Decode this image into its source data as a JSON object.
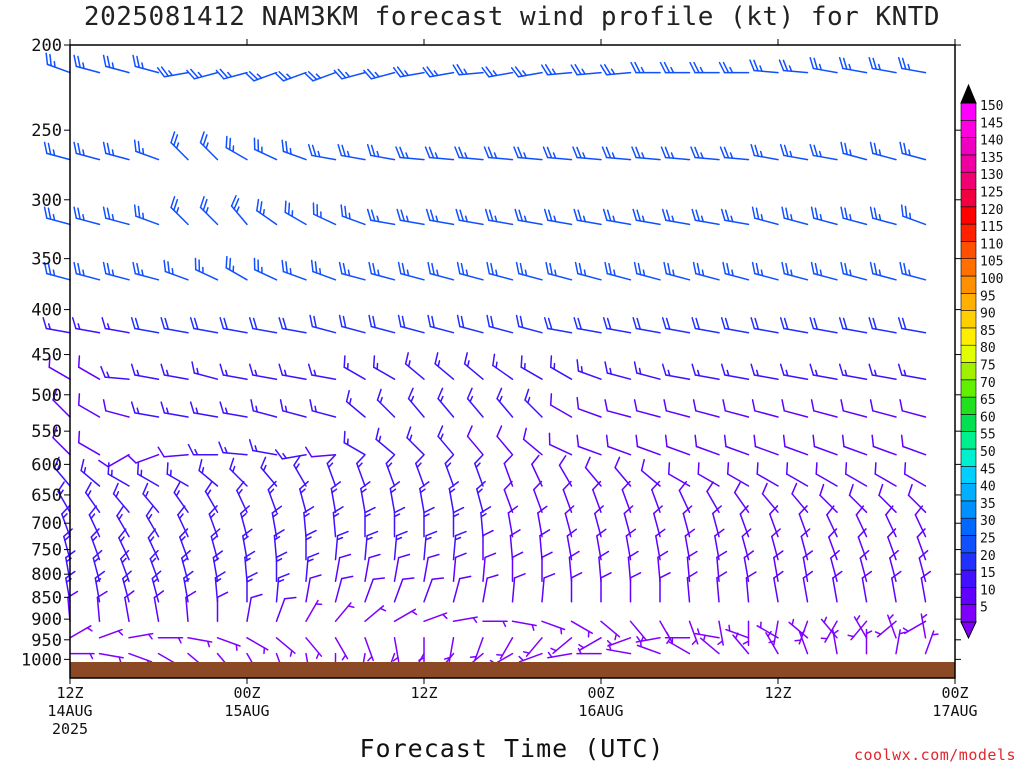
{
  "title": "2025081412 NAM3KM forecast wind profile (kt) for KNTD",
  "xlabel": "Forecast Time (UTC)",
  "source": "coolwx.com/models",
  "chart_data": {
    "type": "wind-barb",
    "title": "2025081412 NAM3KM forecast wind profile (kt) for KNTD",
    "xlabel": "Forecast Time (UTC)",
    "ylabel": "",
    "y_scale": "log-pressure (hPa), inverted",
    "ylim": [
      1050,
      200
    ],
    "yticks": [
      "200",
      "250",
      "300",
      "350",
      "400",
      "450",
      "500",
      "550",
      "600",
      "650",
      "700",
      "750",
      "800",
      "850",
      "900",
      "950",
      "1000"
    ],
    "x_hours_range": [
      0,
      60
    ],
    "xticks": [
      {
        "hour": 0,
        "lines": [
          "12Z",
          "14AUG",
          "2025"
        ]
      },
      {
        "hour": 12,
        "lines": [
          "00Z",
          "15AUG"
        ]
      },
      {
        "hour": 24,
        "lines": [
          "12Z"
        ]
      },
      {
        "hour": 36,
        "lines": [
          "00Z",
          "16AUG"
        ]
      },
      {
        "hour": 48,
        "lines": [
          "12Z"
        ]
      },
      {
        "hour": 60,
        "lines": [
          "00Z",
          "17AUG"
        ]
      }
    ],
    "surface_band_color": "#8b4a25",
    "colorbar": {
      "labels": [
        "5",
        "10",
        "15",
        "20",
        "25",
        "30",
        "35",
        "40",
        "45",
        "50",
        "55",
        "60",
        "65",
        "70",
        "75",
        "80",
        "85",
        "90",
        "95",
        "100",
        "105",
        "110",
        "115",
        "120",
        "125",
        "130",
        "135",
        "140",
        "145",
        "150"
      ],
      "colors": [
        "#8000ff",
        "#6000ff",
        "#4010ff",
        "#2030ff",
        "#1050ff",
        "#0068ff",
        "#0090ff",
        "#00b0ff",
        "#00d0ff",
        "#00f0d0",
        "#00f090",
        "#00e050",
        "#20e020",
        "#60f000",
        "#a0f000",
        "#e0ff00",
        "#ffee00",
        "#ffd000",
        "#ffb000",
        "#ff9000",
        "#ff7000",
        "#ff5000",
        "#ff2000",
        "#ff0000",
        "#f00040",
        "#f00070",
        "#f000a0",
        "#f000c0",
        "#ff00e0",
        "#ff00ff"
      ]
    },
    "levels_hpa": [
      215,
      270,
      320,
      370,
      425,
      480,
      530,
      585,
      635,
      680,
      725,
      770,
      815,
      860,
      905,
      945,
      985
    ],
    "series": [
      {
        "p": 215,
        "dir": [
          290,
          285,
          285,
          285,
          260,
          255,
          255,
          250,
          250,
          250,
          255,
          255,
          260,
          260,
          265,
          260,
          260,
          265,
          265,
          265,
          270,
          270,
          270,
          270,
          275,
          275,
          280,
          280,
          280,
          280,
          285
        ],
        "spd": [
          25,
          25,
          25,
          25,
          25,
          25,
          25,
          25,
          25,
          25,
          25,
          25,
          25,
          25,
          25,
          25,
          25,
          25,
          25,
          25,
          25,
          25,
          25,
          25,
          25,
          25,
          25,
          25,
          25,
          25,
          25
        ]
      },
      {
        "p": 270,
        "dir": [
          285,
          285,
          285,
          290,
          315,
          315,
          300,
          295,
          290,
          280,
          280,
          280,
          275,
          275,
          275,
          275,
          275,
          275,
          275,
          275,
          275,
          275,
          275,
          275,
          280,
          280,
          280,
          285,
          285,
          285,
          285
        ],
        "spd": [
          25,
          25,
          25,
          25,
          25,
          25,
          25,
          25,
          25,
          25,
          25,
          25,
          25,
          25,
          25,
          25,
          25,
          25,
          25,
          25,
          25,
          25,
          25,
          25,
          25,
          25,
          25,
          25,
          25,
          25,
          25
        ]
      },
      {
        "p": 320,
        "dir": [
          285,
          285,
          285,
          290,
          315,
          315,
          320,
          305,
          300,
          295,
          290,
          280,
          280,
          280,
          280,
          280,
          280,
          280,
          280,
          280,
          280,
          280,
          280,
          280,
          285,
          285,
          285,
          285,
          285,
          290,
          290
        ],
        "spd": [
          25,
          25,
          25,
          25,
          25,
          25,
          25,
          25,
          25,
          25,
          25,
          25,
          25,
          25,
          25,
          25,
          25,
          25,
          25,
          25,
          25,
          25,
          25,
          25,
          25,
          25,
          25,
          25,
          25,
          25,
          25
        ]
      },
      {
        "p": 370,
        "dir": [
          285,
          285,
          285,
          285,
          290,
          295,
          300,
          295,
          290,
          290,
          285,
          285,
          285,
          285,
          285,
          285,
          285,
          285,
          285,
          285,
          285,
          285,
          285,
          285,
          285,
          285,
          285,
          285,
          285,
          285,
          285
        ],
        "spd": [
          25,
          25,
          25,
          25,
          25,
          25,
          25,
          25,
          25,
          25,
          25,
          25,
          25,
          25,
          25,
          25,
          25,
          25,
          25,
          25,
          25,
          25,
          25,
          25,
          25,
          25,
          25,
          25,
          25,
          25,
          25
        ]
      },
      {
        "p": 425,
        "dir": [
          280,
          280,
          280,
          280,
          280,
          280,
          280,
          280,
          280,
          285,
          285,
          285,
          285,
          285,
          285,
          285,
          285,
          280,
          280,
          280,
          280,
          280,
          280,
          280,
          280,
          280,
          280,
          280,
          280,
          280,
          280
        ],
        "spd": [
          15,
          15,
          15,
          20,
          20,
          20,
          20,
          20,
          20,
          20,
          20,
          20,
          20,
          20,
          20,
          20,
          20,
          20,
          20,
          20,
          20,
          20,
          20,
          20,
          20,
          20,
          20,
          20,
          20,
          20,
          20
        ]
      },
      {
        "p": 480,
        "dir": [
          300,
          300,
          275,
          280,
          280,
          285,
          280,
          280,
          280,
          280,
          300,
          300,
          310,
          310,
          310,
          305,
          300,
          300,
          290,
          285,
          285,
          280,
          280,
          280,
          280,
          280,
          280,
          280,
          280,
          280,
          280
        ],
        "spd": [
          10,
          10,
          15,
          15,
          15,
          15,
          15,
          15,
          15,
          15,
          15,
          15,
          15,
          15,
          15,
          15,
          15,
          15,
          15,
          15,
          15,
          15,
          15,
          15,
          15,
          15,
          15,
          15,
          15,
          15,
          15
        ]
      },
      {
        "p": 530,
        "dir": [
          315,
          300,
          285,
          280,
          280,
          280,
          280,
          285,
          285,
          285,
          310,
          315,
          320,
          320,
          320,
          320,
          315,
          300,
          290,
          285,
          285,
          285,
          285,
          285,
          285,
          285,
          285,
          285,
          285,
          285,
          285
        ],
        "spd": [
          10,
          10,
          10,
          15,
          15,
          15,
          15,
          15,
          15,
          15,
          15,
          15,
          15,
          15,
          15,
          15,
          15,
          10,
          10,
          10,
          10,
          10,
          10,
          10,
          10,
          10,
          10,
          10,
          10,
          10,
          10
        ]
      },
      {
        "p": 585,
        "dir": [
          315,
          300,
          240,
          250,
          265,
          270,
          275,
          280,
          260,
          265,
          300,
          310,
          315,
          320,
          320,
          320,
          310,
          295,
          290,
          290,
          290,
          290,
          290,
          290,
          290,
          290,
          290,
          290,
          290,
          290,
          290
        ],
        "spd": [
          10,
          10,
          10,
          10,
          10,
          15,
          15,
          15,
          15,
          10,
          15,
          15,
          15,
          15,
          10,
          10,
          10,
          10,
          10,
          10,
          10,
          10,
          10,
          10,
          10,
          10,
          10,
          10,
          10,
          10,
          10
        ]
      },
      {
        "p": 635,
        "dir": [
          320,
          310,
          300,
          300,
          300,
          310,
          315,
          320,
          330,
          340,
          340,
          340,
          340,
          340,
          340,
          340,
          335,
          330,
          320,
          320,
          310,
          300,
          300,
          300,
          300,
          300,
          300,
          300,
          300,
          300,
          300
        ],
        "spd": [
          15,
          15,
          15,
          15,
          15,
          15,
          15,
          15,
          15,
          15,
          15,
          15,
          15,
          15,
          15,
          10,
          10,
          10,
          10,
          10,
          10,
          10,
          10,
          10,
          10,
          10,
          10,
          10,
          10,
          10,
          10
        ]
      },
      {
        "p": 680,
        "dir": [
          330,
          325,
          320,
          320,
          325,
          330,
          335,
          340,
          345,
          350,
          350,
          350,
          350,
          350,
          345,
          340,
          340,
          340,
          340,
          340,
          340,
          335,
          330,
          325,
          320,
          320,
          315,
          315,
          315,
          315,
          315
        ],
        "spd": [
          15,
          15,
          15,
          15,
          15,
          15,
          15,
          15,
          15,
          15,
          15,
          15,
          15,
          15,
          15,
          10,
          10,
          10,
          10,
          10,
          10,
          10,
          10,
          10,
          10,
          10,
          10,
          10,
          10,
          10,
          10
        ]
      },
      {
        "p": 725,
        "dir": [
          340,
          335,
          330,
          330,
          335,
          340,
          345,
          350,
          355,
          355,
          0,
          0,
          0,
          0,
          355,
          350,
          350,
          345,
          345,
          345,
          345,
          345,
          345,
          340,
          340,
          340,
          335,
          335,
          335,
          335,
          335
        ],
        "spd": [
          15,
          15,
          15,
          15,
          15,
          15,
          15,
          15,
          15,
          15,
          15,
          15,
          15,
          15,
          15,
          10,
          10,
          10,
          10,
          10,
          10,
          10,
          10,
          10,
          10,
          10,
          10,
          10,
          10,
          10,
          10
        ]
      },
      {
        "p": 770,
        "dir": [
          345,
          340,
          335,
          335,
          340,
          345,
          350,
          355,
          0,
          5,
          5,
          5,
          5,
          5,
          0,
          355,
          355,
          350,
          350,
          350,
          350,
          350,
          350,
          345,
          345,
          345,
          340,
          340,
          340,
          340,
          340
        ],
        "spd": [
          15,
          15,
          15,
          15,
          15,
          15,
          15,
          15,
          15,
          15,
          15,
          15,
          15,
          15,
          10,
          10,
          10,
          10,
          10,
          10,
          10,
          10,
          10,
          10,
          10,
          10,
          10,
          10,
          10,
          10,
          10
        ]
      },
      {
        "p": 815,
        "dir": [
          350,
          345,
          340,
          340,
          345,
          350,
          355,
          0,
          5,
          10,
          10,
          10,
          10,
          5,
          5,
          0,
          0,
          355,
          355,
          355,
          355,
          355,
          355,
          350,
          350,
          350,
          345,
          345,
          345,
          345,
          345
        ],
        "spd": [
          15,
          15,
          15,
          15,
          15,
          15,
          15,
          15,
          15,
          10,
          10,
          10,
          10,
          10,
          10,
          10,
          10,
          10,
          10,
          10,
          10,
          10,
          10,
          10,
          10,
          10,
          10,
          10,
          10,
          10,
          10
        ]
      },
      {
        "p": 860,
        "dir": [
          350,
          350,
          345,
          345,
          350,
          355,
          0,
          5,
          10,
          15,
          20,
          20,
          20,
          15,
          10,
          5,
          5,
          0,
          0,
          0,
          0,
          355,
          355,
          355,
          350,
          350,
          350,
          350,
          350,
          350,
          350
        ],
        "spd": [
          15,
          15,
          15,
          15,
          15,
          15,
          15,
          15,
          10,
          10,
          10,
          10,
          10,
          10,
          10,
          10,
          10,
          10,
          10,
          10,
          10,
          10,
          10,
          10,
          10,
          10,
          10,
          10,
          10,
          10,
          10
        ]
      },
      {
        "p": 905,
        "dir": [
          355,
          355,
          350,
          350,
          355,
          0,
          10,
          20,
          30,
          40,
          50,
          60,
          70,
          80,
          90,
          100,
          110,
          120,
          130,
          140,
          150,
          160,
          170,
          180,
          190,
          200,
          210,
          220,
          230,
          240,
          250
        ],
        "spd": [
          10,
          10,
          10,
          10,
          10,
          10,
          10,
          10,
          5,
          5,
          5,
          5,
          5,
          5,
          5,
          5,
          5,
          5,
          5,
          5,
          5,
          5,
          5,
          5,
          5,
          5,
          5,
          5,
          5,
          5,
          5
        ]
      },
      {
        "p": 945,
        "dir": [
          60,
          70,
          80,
          90,
          100,
          110,
          120,
          130,
          140,
          150,
          160,
          170,
          180,
          190,
          200,
          210,
          220,
          230,
          240,
          250,
          260,
          270,
          280,
          290,
          300,
          310,
          320,
          330,
          340,
          350,
          0
        ],
        "spd": [
          5,
          5,
          5,
          5,
          5,
          5,
          5,
          5,
          5,
          5,
          5,
          5,
          5,
          5,
          5,
          5,
          5,
          5,
          5,
          5,
          5,
          5,
          5,
          5,
          5,
          5,
          5,
          5,
          5,
          5,
          5
        ]
      },
      {
        "p": 985,
        "dir": [
          90,
          100,
          110,
          120,
          130,
          140,
          150,
          160,
          170,
          180,
          190,
          200,
          210,
          220,
          230,
          240,
          250,
          260,
          270,
          280,
          290,
          300,
          310,
          320,
          330,
          340,
          350,
          0,
          10,
          20,
          30
        ],
        "spd": [
          5,
          5,
          5,
          5,
          5,
          5,
          5,
          5,
          5,
          5,
          5,
          5,
          5,
          5,
          5,
          5,
          5,
          5,
          5,
          5,
          5,
          5,
          5,
          5,
          5,
          5,
          5,
          5,
          5,
          5,
          5
        ]
      }
    ]
  }
}
